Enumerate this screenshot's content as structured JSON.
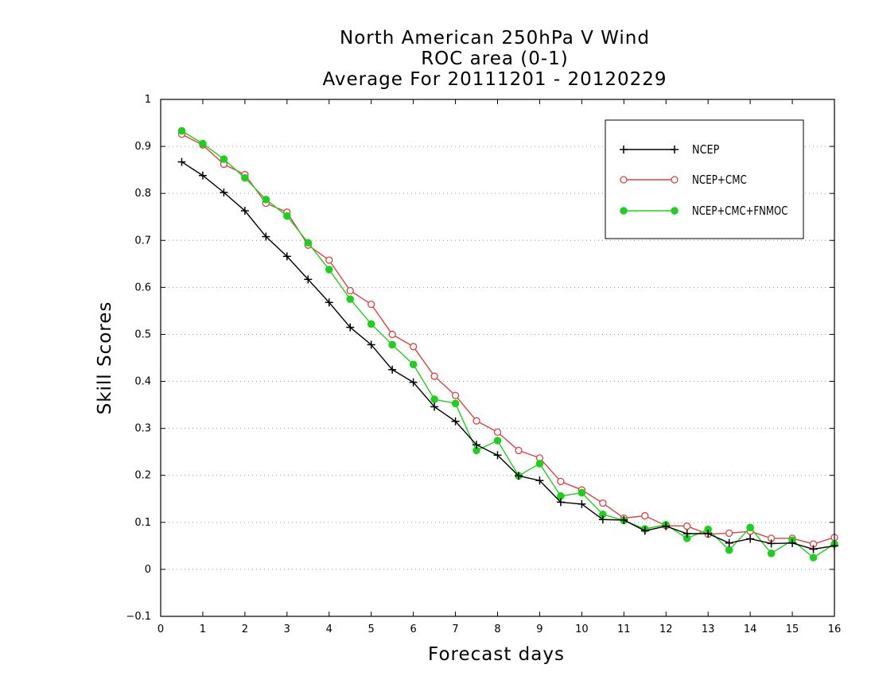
{
  "chart_data": {
    "type": "line",
    "title": [
      "North American 250hPa V Wind",
      "ROC area (0-1)",
      "Average For 20111201 - 20120229"
    ],
    "xlabel": "Forecast days",
    "ylabel": "Skill Scores",
    "xlim": [
      0,
      16
    ],
    "ylim": [
      -0.1,
      1
    ],
    "xticks": [
      "0",
      "1",
      "2",
      "3",
      "4",
      "5",
      "6",
      "7",
      "8",
      "9",
      "10",
      "11",
      "12",
      "13",
      "14",
      "15",
      "16"
    ],
    "yticks": [
      "−0.1",
      "0",
      "0.1",
      "0.2",
      "0.3",
      "0.4",
      "0.5",
      "0.6",
      "0.7",
      "0.8",
      "0.9",
      "1"
    ],
    "grid": "horizontal dotted",
    "legend_position": "top-right",
    "x": [
      0.5,
      1,
      1.5,
      2,
      2.5,
      3,
      3.5,
      4,
      4.5,
      5,
      5.5,
      6,
      6.5,
      7,
      7.5,
      8,
      8.5,
      9,
      9.5,
      10,
      10.5,
      11,
      11.5,
      12,
      12.5,
      13,
      13.5,
      14,
      14.5,
      15,
      15.5,
      16
    ],
    "series": [
      {
        "name": "NCEP",
        "color": "#000000",
        "marker": "plus",
        "values": [
          0.867,
          0.838,
          0.802,
          0.763,
          0.708,
          0.666,
          0.617,
          0.568,
          0.515,
          0.478,
          0.425,
          0.398,
          0.346,
          0.315,
          0.265,
          0.243,
          0.199,
          0.189,
          0.143,
          0.139,
          0.106,
          0.105,
          0.082,
          0.092,
          0.076,
          0.076,
          0.056,
          0.065,
          0.055,
          0.056,
          0.043,
          0.05
        ]
      },
      {
        "name": "NCEP+CMC",
        "color": "#e04040",
        "marker": "open-circle",
        "values": [
          0.926,
          0.903,
          0.862,
          0.84,
          0.779,
          0.76,
          0.69,
          0.658,
          0.593,
          0.564,
          0.5,
          0.474,
          0.411,
          0.37,
          0.316,
          0.292,
          0.253,
          0.237,
          0.187,
          0.169,
          0.141,
          0.109,
          0.114,
          0.093,
          0.092,
          0.075,
          0.077,
          0.081,
          0.066,
          0.066,
          0.054,
          0.068
        ]
      },
      {
        "name": "NCEP+CMC+FNMOC",
        "color": "#1ed01e",
        "marker": "filled-circle",
        "values": [
          0.933,
          0.906,
          0.873,
          0.833,
          0.787,
          0.752,
          0.695,
          0.638,
          0.575,
          0.522,
          0.478,
          0.436,
          0.362,
          0.353,
          0.253,
          0.274,
          0.199,
          0.225,
          0.156,
          0.163,
          0.117,
          0.104,
          0.086,
          0.095,
          0.066,
          0.085,
          0.041,
          0.089,
          0.034,
          0.062,
          0.025,
          0.054
        ]
      }
    ]
  }
}
